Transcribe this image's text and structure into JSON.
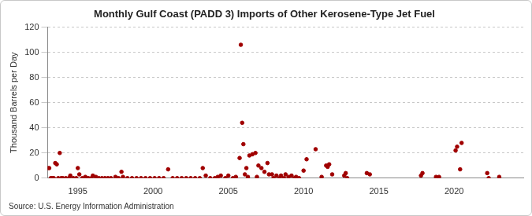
{
  "chart_data": {
    "type": "scatter",
    "title": "Monthly Gulf Coast (PADD 3) Imports of Other Kerosene-Type Jet Fuel",
    "y_label": "Thousand Barrels per Day",
    "source": "Source: U.S. Energy Information Administration",
    "color": "#a00000",
    "marker": "circle",
    "grid": true,
    "xlim": [
      1993,
      2024.6
    ],
    "xticks": [
      1995,
      2000,
      2005,
      2010,
      2015,
      2020
    ],
    "ylim": [
      0,
      120
    ],
    "yticks": [
      0,
      20,
      40,
      60,
      80,
      100,
      120
    ],
    "x": [
      1993.0,
      1993.1,
      1993.2,
      1993.3,
      1993.4,
      1993.5,
      1993.6,
      1993.7,
      1993.8,
      1993.9,
      1994.0,
      1994.2,
      1994.4,
      1994.5,
      1994.7,
      1994.9,
      1995.0,
      1995.1,
      1995.3,
      1995.5,
      1995.7,
      1995.9,
      1996.0,
      1996.2,
      1996.4,
      1996.6,
      1996.8,
      1997.0,
      1997.2,
      1997.5,
      1997.7,
      1997.9,
      1998.0,
      1998.3,
      1998.6,
      1998.9,
      1999.2,
      1999.5,
      1999.8,
      2000.1,
      2000.4,
      2000.7,
      2001.0,
      2001.3,
      2001.6,
      2001.9,
      2002.2,
      2002.5,
      2002.8,
      2003.1,
      2003.3,
      2003.5,
      2003.8,
      2004.1,
      2004.3,
      2004.5,
      2004.8,
      2005.0,
      2005.3,
      2005.5,
      2005.75,
      2005.83,
      2005.92,
      2006.0,
      2006.1,
      2006.2,
      2006.3,
      2006.4,
      2006.6,
      2006.8,
      2006.9,
      2007.0,
      2007.2,
      2007.4,
      2007.6,
      2007.7,
      2007.9,
      2008.0,
      2008.2,
      2008.4,
      2008.5,
      2008.7,
      2008.8,
      2009.0,
      2009.2,
      2009.4,
      2009.5,
      2009.7,
      2010.0,
      2010.2,
      2010.8,
      2011.2,
      2011.5,
      2011.6,
      2011.7,
      2011.9,
      2012.7,
      2012.8,
      2012.9,
      2014.2,
      2014.4,
      2017.8,
      2017.9,
      2018.8,
      2019.0,
      2020.1,
      2020.2,
      2020.4,
      2020.5,
      2022.2,
      2022.3,
      2023.0
    ],
    "values": [
      8,
      8,
      0,
      0,
      0,
      12,
      11,
      0,
      20,
      0,
      0,
      0,
      0,
      2,
      0,
      0,
      8,
      3,
      0,
      1,
      0,
      0,
      2,
      1,
      0,
      0,
      0,
      0,
      0,
      1,
      0,
      5,
      1,
      0,
      0,
      0,
      0,
      0,
      0,
      0,
      0,
      0,
      7,
      0,
      0,
      0,
      0,
      0,
      0,
      0,
      8,
      2,
      0,
      0,
      1,
      2,
      0,
      2,
      0,
      1,
      16,
      106,
      44,
      27,
      3,
      8,
      1,
      18,
      19,
      20,
      1,
      10,
      8,
      5,
      12,
      3,
      3,
      0,
      2,
      0,
      2,
      0,
      3,
      1,
      2,
      0,
      1,
      0,
      6,
      15,
      23,
      1,
      10,
      9,
      11,
      3,
      2,
      4,
      0,
      4,
      3,
      2,
      4,
      1,
      1,
      22,
      25,
      7,
      28,
      4,
      0,
      1
    ]
  }
}
